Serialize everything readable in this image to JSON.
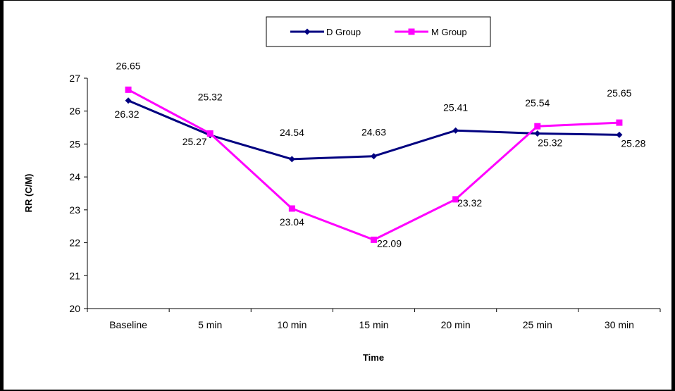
{
  "chart_data": {
    "type": "line",
    "xlabel": "Time",
    "ylabel": "RR (C/M)",
    "categories": [
      "Baseline",
      "5 min",
      "10 min",
      "15 min",
      "20 min",
      "25 min",
      "30 min"
    ],
    "ylim": [
      20,
      27
    ],
    "yticks": [
      "20",
      "21",
      "22",
      "23",
      "24",
      "25",
      "26",
      "27"
    ],
    "grid": false,
    "legend_position": "top",
    "series": [
      {
        "name": "D Group",
        "color": "#000080",
        "marker": "diamond",
        "values": [
          26.32,
          25.27,
          24.54,
          24.63,
          25.41,
          25.32,
          25.28
        ],
        "labels": [
          "26.32",
          "25.27",
          "24.54",
          "24.63",
          "25.41",
          "25.32",
          "25.28"
        ]
      },
      {
        "name": "M Group",
        "color": "#FF00FF",
        "marker": "square",
        "values": [
          26.65,
          25.32,
          23.04,
          22.09,
          23.32,
          25.54,
          25.65
        ],
        "labels": [
          "26.65",
          "25.32",
          "23.04",
          "22.09",
          "23.32",
          "25.54",
          "25.65"
        ]
      }
    ]
  }
}
